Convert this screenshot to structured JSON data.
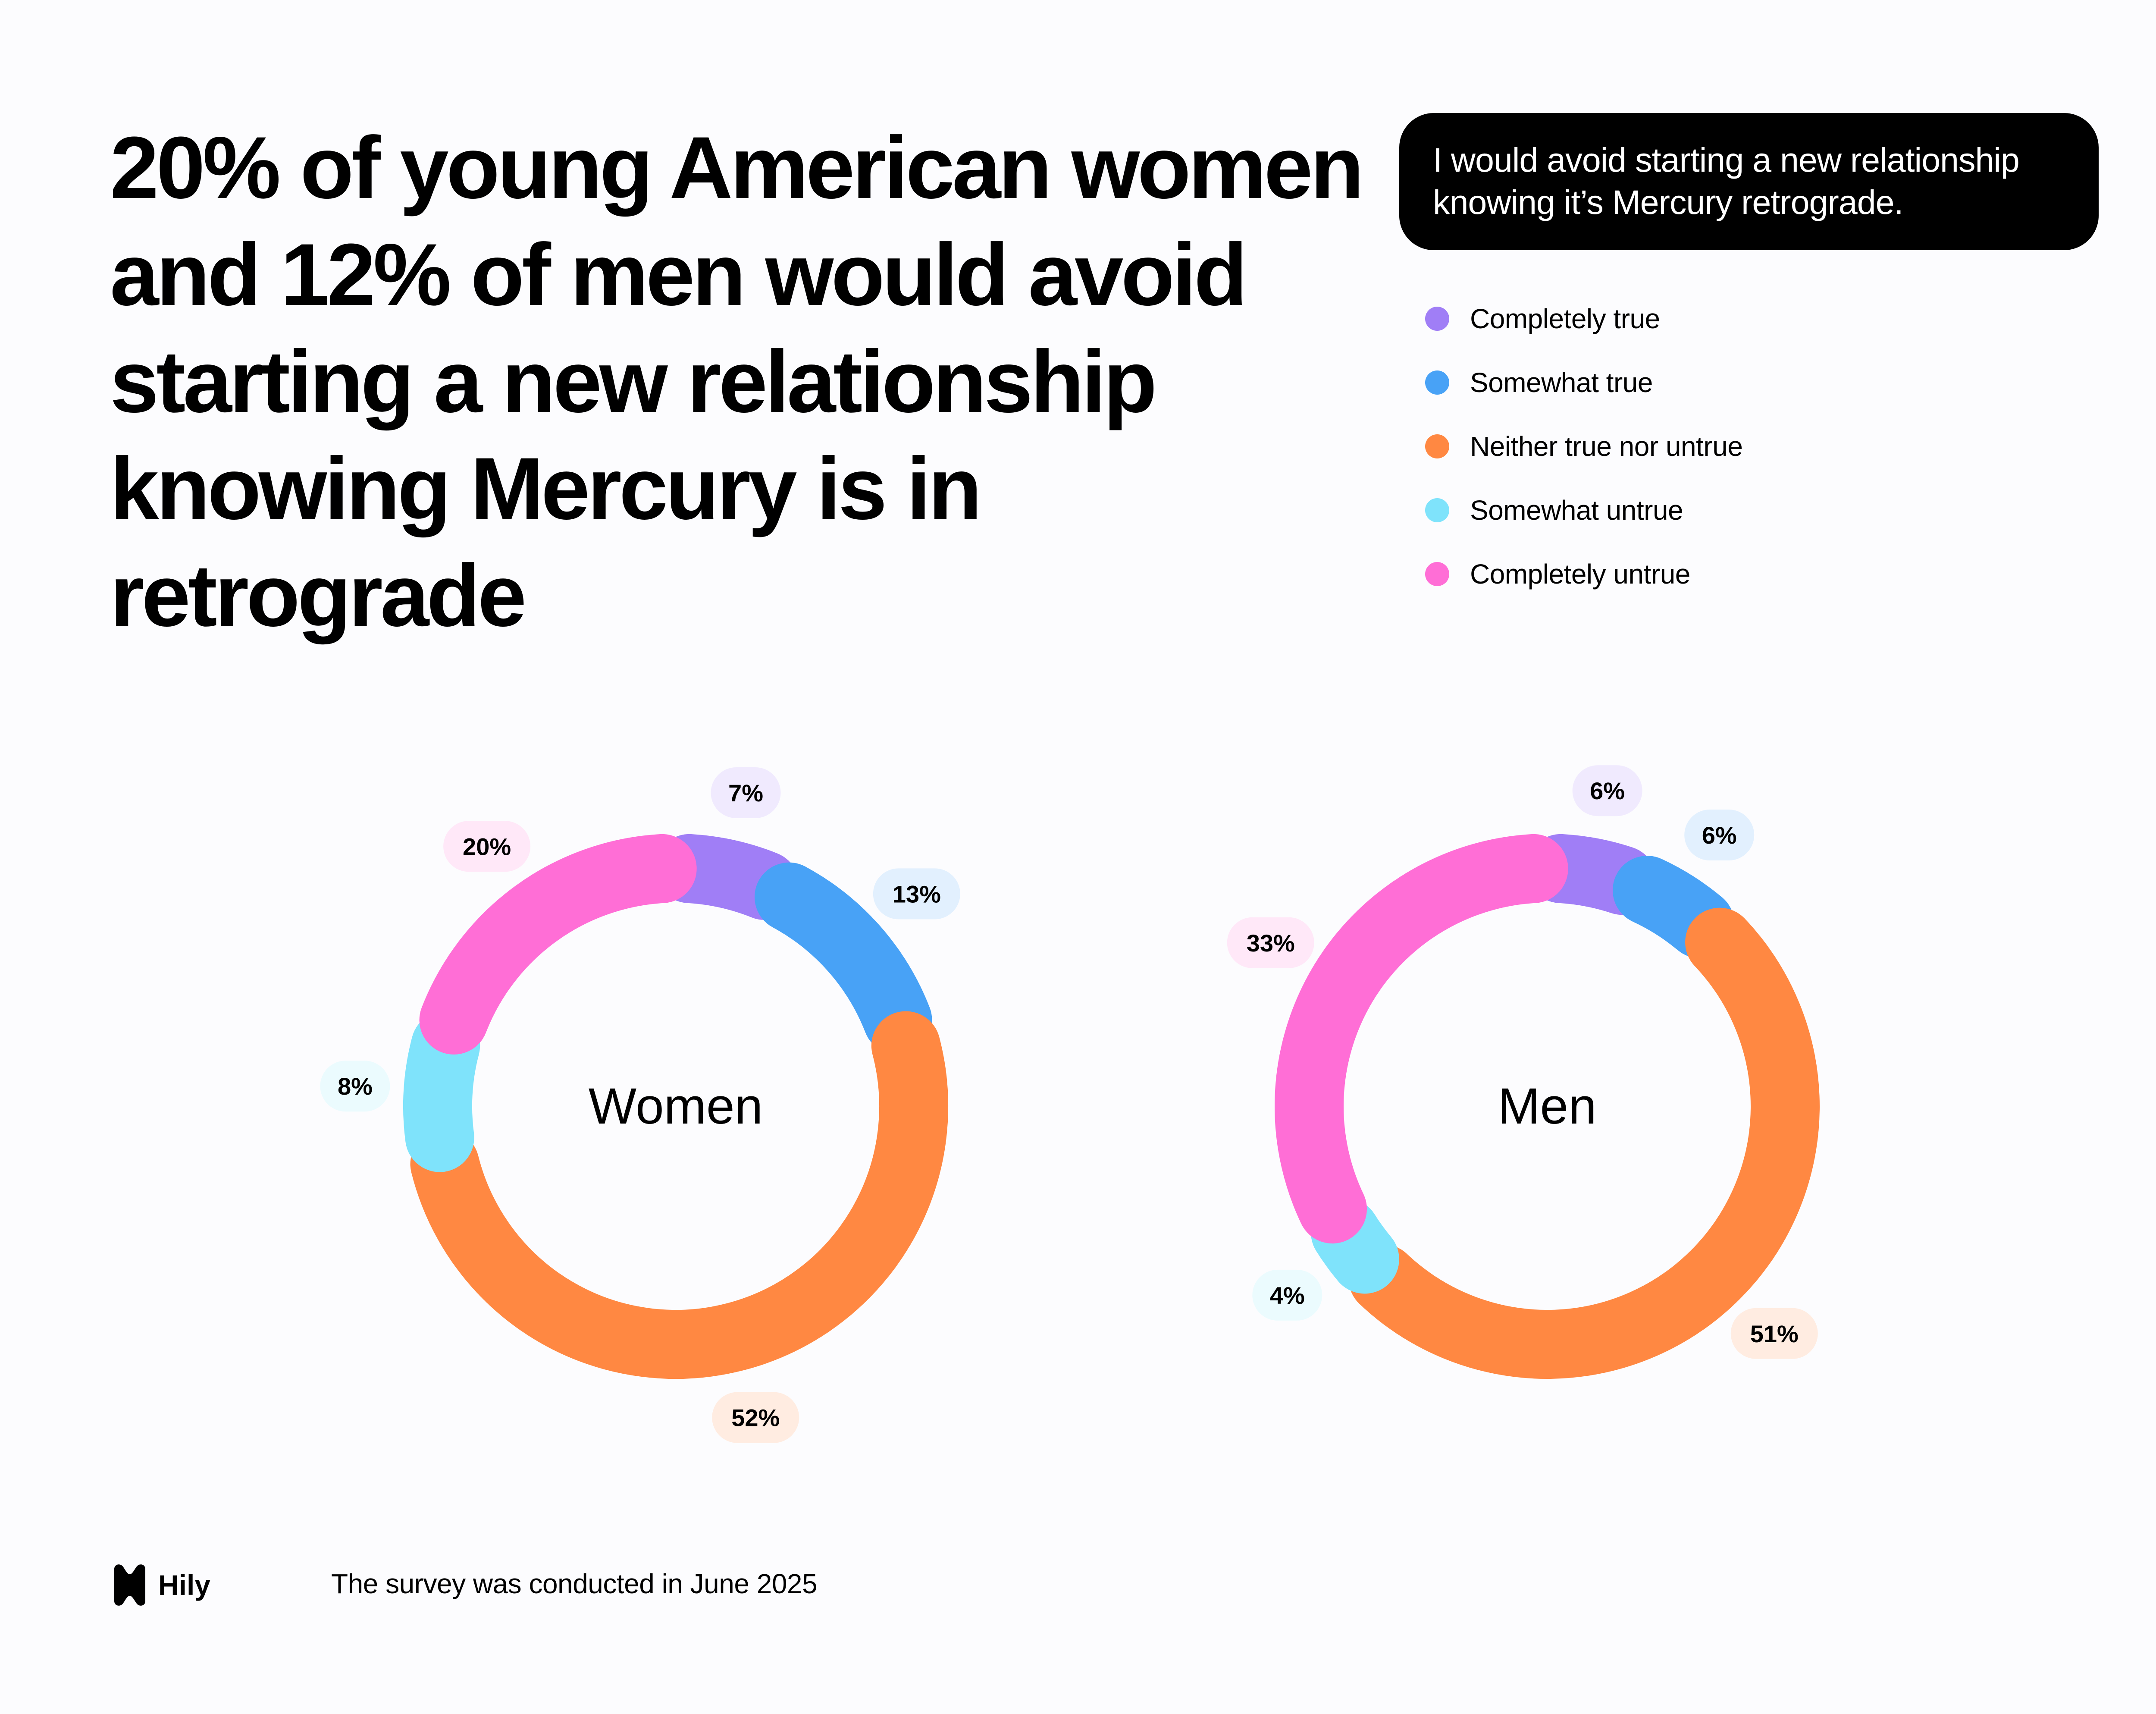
{
  "headline": "20% of young American women and 12% of men would avoid starting a new relationship knowing Mercury is in retrograde",
  "question": "I would avoid starting a new relationship knowing it’s Mercury retrograde.",
  "legend": [
    {
      "label": "Completely true",
      "color": "#a07ef6"
    },
    {
      "label": "Somewhat true",
      "color": "#48a2f6"
    },
    {
      "label": "Neither true nor untrue",
      "color": "#ff8842"
    },
    {
      "label": "Somewhat untrue",
      "color": "#7fe3fb"
    },
    {
      "label": "Completely untrue",
      "color": "#ff6ed6"
    }
  ],
  "chart_data": [
    {
      "type": "pie",
      "title": "Women",
      "categories": [
        "Completely true",
        "Somewhat true",
        "Neither true nor untrue",
        "Somewhat untrue",
        "Completely untrue"
      ],
      "values": [
        7,
        13,
        52,
        8,
        20
      ],
      "labels": [
        "7%",
        "13%",
        "52%",
        "8%",
        "20%"
      ]
    },
    {
      "type": "pie",
      "title": "Men",
      "categories": [
        "Completely true",
        "Somewhat true",
        "Neither true nor untrue",
        "Somewhat untrue",
        "Completely untrue"
      ],
      "values": [
        6,
        6,
        51,
        4,
        33
      ],
      "labels": [
        "6%",
        "6%",
        "51%",
        "4%",
        "33%"
      ]
    }
  ],
  "footer": {
    "brand": "Hily",
    "note": "The survey was conducted in June 2025"
  }
}
